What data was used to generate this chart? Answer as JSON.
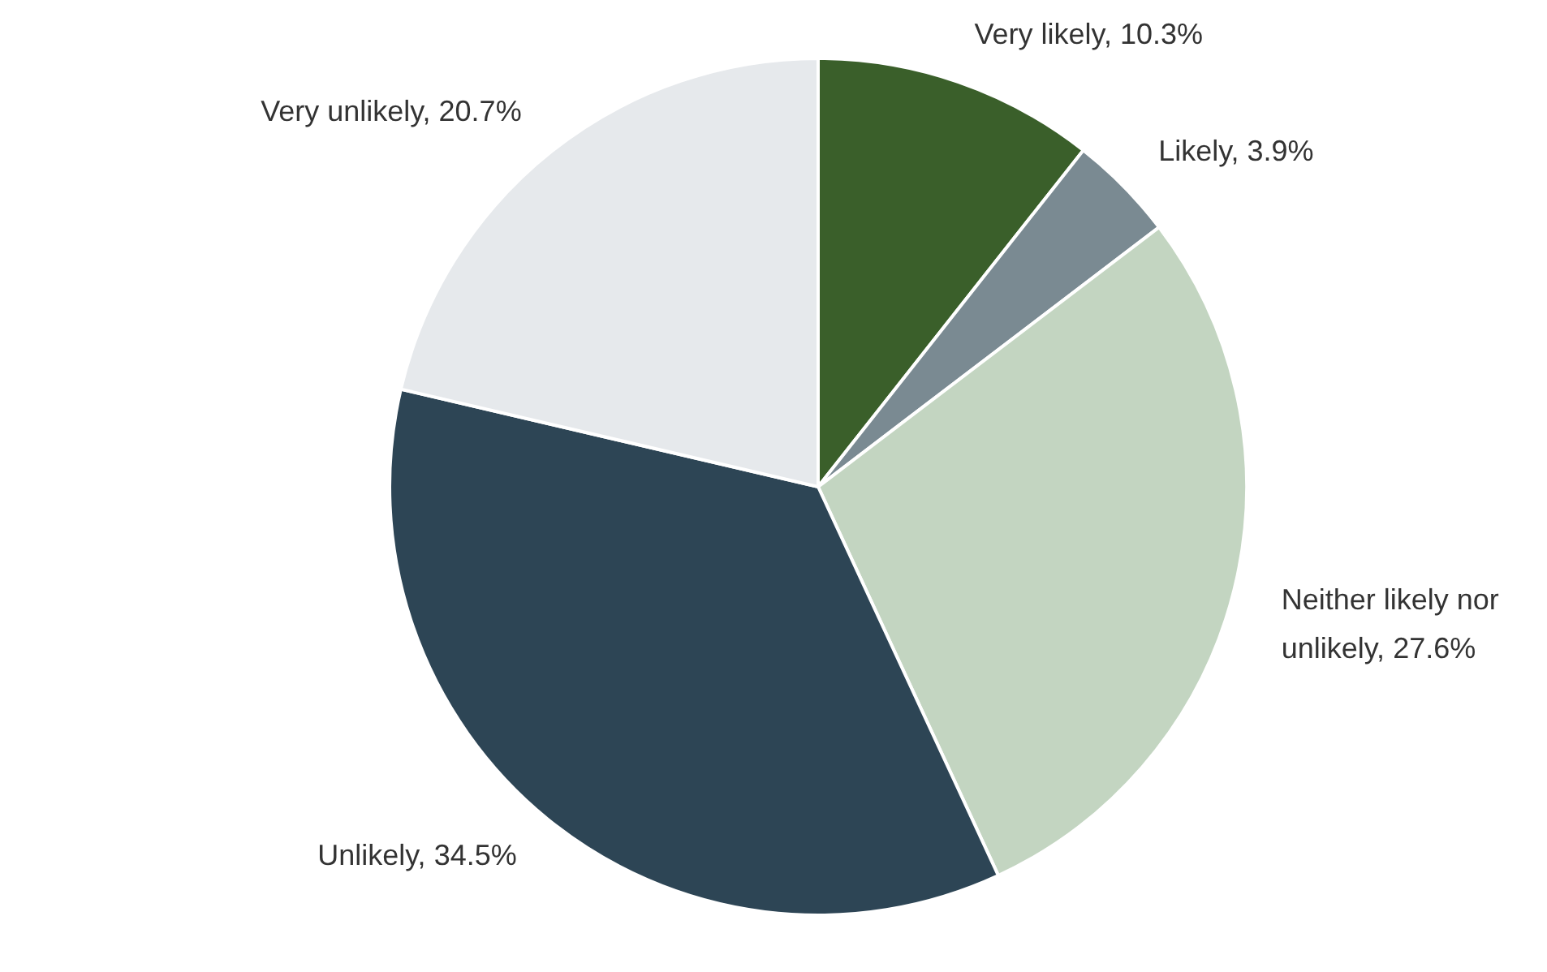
{
  "chart_data": {
    "type": "pie",
    "categories": [
      "Very likely, 10.3%",
      "Likely, 3.9%",
      "Neither likely nor unlikely, 27.6%",
      "Unlikely, 34.5%",
      "Very unlikely, 20.7%"
    ],
    "values": [
      10.3,
      3.9,
      27.6,
      34.5,
      20.7
    ],
    "colors": [
      "#3a5f2a",
      "#7a8a92",
      "#c3d5c1",
      "#2d4555",
      "#e6e9ec"
    ],
    "legend": false
  }
}
